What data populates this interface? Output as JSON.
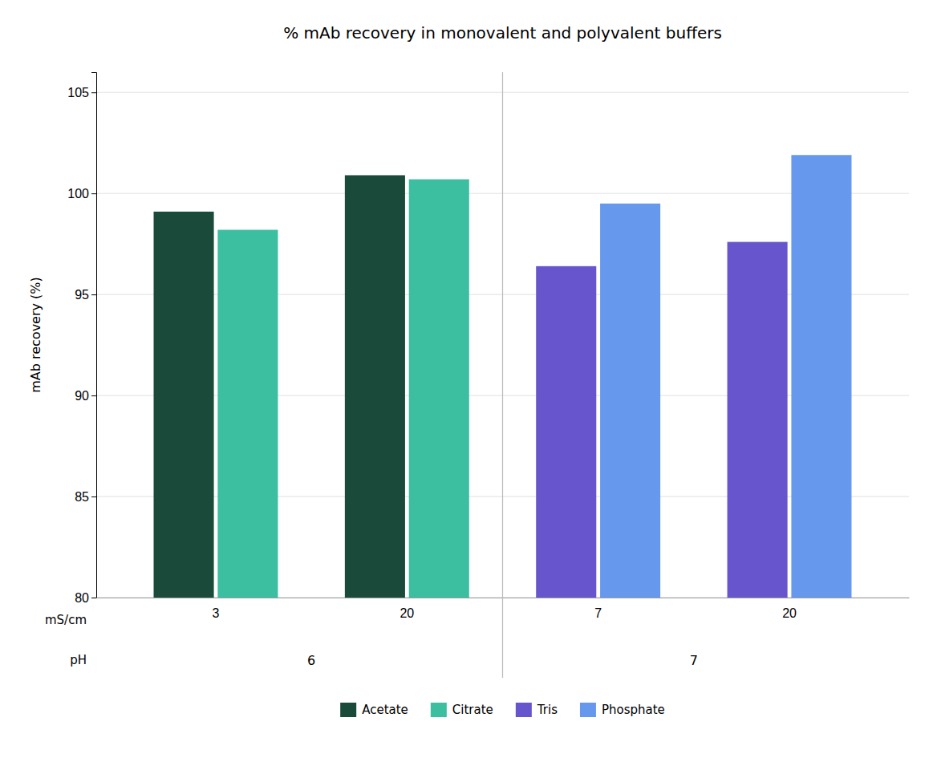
{
  "chart_data": {
    "type": "bar",
    "title": "% mAb recovery in monovalent and polyvalent buffers",
    "ylabel": "mAb recovery (%)",
    "xlabel": "mS/cm",
    "categories": [
      "3",
      "20",
      "7",
      "20"
    ],
    "category_groups_label": "pH",
    "category_groups": [
      "6",
      "6",
      "7",
      "7"
    ],
    "series": [
      {
        "name": "Acetate",
        "color": "#1a4a3a",
        "values": [
          99.1,
          100.9,
          null,
          null
        ]
      },
      {
        "name": "Citrate",
        "color": "#3bbfa0",
        "values": [
          98.2,
          100.7,
          null,
          null
        ]
      },
      {
        "name": "Tris",
        "color": "#6655cc",
        "values": [
          null,
          null,
          96.4,
          97.6
        ]
      },
      {
        "name": "Phosphate",
        "color": "#6699ee",
        "values": [
          null,
          null,
          99.5,
          101.9
        ]
      }
    ],
    "ylim": [
      80,
      106
    ],
    "yticks": [
      80,
      85,
      90,
      95,
      100,
      105
    ],
    "grid": true,
    "legend": "bottom"
  }
}
